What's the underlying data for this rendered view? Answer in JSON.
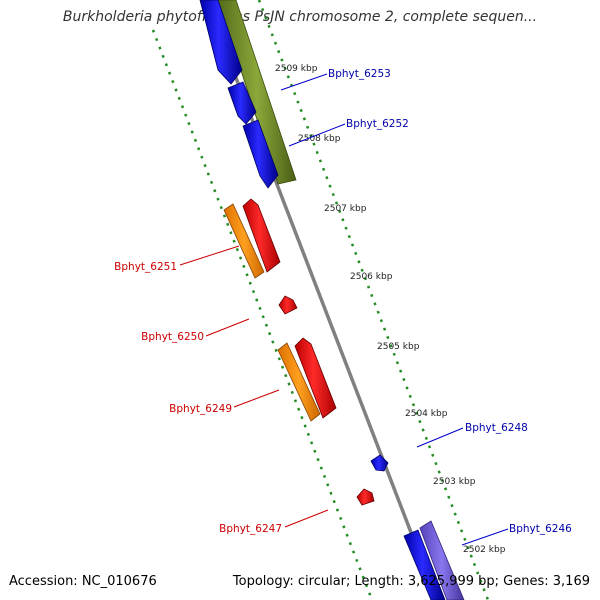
{
  "title": "Burkholderia phytofirmans PsJN chromosome 2, complete sequen...",
  "accession_text": "Accession: NC_010676",
  "topology_text": "Topology: circular; Length: 3,625,999 bp; Genes: 3,169",
  "colors": {
    "forward_cds": "#0000ee",
    "forward_cds_alt": "#6655cc",
    "reverse_cds": "#ee0000",
    "reverse_gene": "#ff8c00",
    "region": "#6b8e23",
    "backbone": "#808080",
    "ticks": "#228b22",
    "forward_label": "#0000aa",
    "reverse_label": "#cc0000"
  },
  "kbp_ticks": [
    {
      "pos": 2509,
      "label": "2509 kbp"
    },
    {
      "pos": 2508,
      "label": "2508 kbp"
    },
    {
      "pos": 2507,
      "label": "2507 kbp"
    },
    {
      "pos": 2506,
      "label": "2506 kbp"
    },
    {
      "pos": 2505,
      "label": "2505 kbp"
    },
    {
      "pos": 2504,
      "label": "2504 kbp"
    },
    {
      "pos": 2503,
      "label": "2503 kbp"
    },
    {
      "pos": 2502,
      "label": "2502 kbp"
    }
  ],
  "gene_labels": [
    {
      "name": "Bphyt_6253",
      "strand": "forward"
    },
    {
      "name": "Bphyt_6252",
      "strand": "forward"
    },
    {
      "name": "Bphyt_6251",
      "strand": "reverse"
    },
    {
      "name": "Bphyt_6250",
      "strand": "reverse"
    },
    {
      "name": "Bphyt_6249",
      "strand": "reverse"
    },
    {
      "name": "Bphyt_6248",
      "strand": "forward"
    },
    {
      "name": "Bphyt_6247",
      "strand": "reverse"
    },
    {
      "name": "Bphyt_6246",
      "strand": "forward"
    }
  ]
}
